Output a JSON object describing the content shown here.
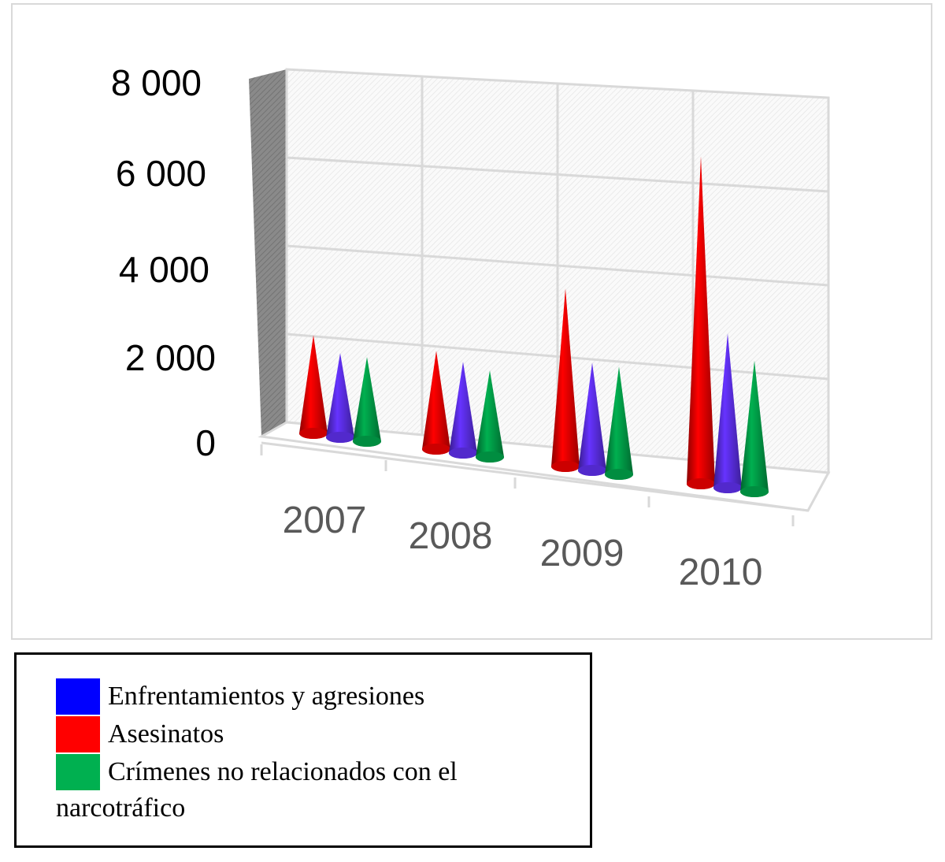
{
  "chart_data": {
    "type": "bar",
    "style": "3d-cone",
    "categories": [
      "2007",
      "2008",
      "2009",
      "2010"
    ],
    "series": [
      {
        "name": "Asesinatos",
        "color": "#ff0000",
        "values": [
          2100,
          2100,
          3800,
          7000
        ]
      },
      {
        "name": "Enfrentamientos y agresiones",
        "color": "#6633ff",
        "values": [
          1800,
          1950,
          2300,
          3300
        ]
      },
      {
        "name": "Crímenes no relacionados con el narcotráfico",
        "color": "#00b050",
        "values": [
          1800,
          1850,
          2300,
          2800
        ]
      }
    ],
    "y_ticks": [
      "0",
      "2 000",
      "4 000",
      "6 000",
      "8 000"
    ],
    "ylim": [
      0,
      8000
    ],
    "grid": true,
    "legend_placement": "bottom-left"
  },
  "legend": {
    "items": [
      {
        "label": "Enfrentamientos y agresiones",
        "color": "#0000ff"
      },
      {
        "label": "Asesinatos",
        "color": "#ff0000"
      },
      {
        "label": "Crímenes no relacionados con el narcotráfico",
        "color": "#00b050"
      }
    ]
  }
}
